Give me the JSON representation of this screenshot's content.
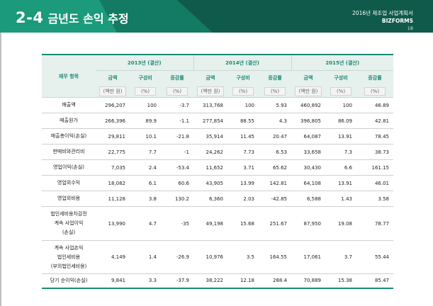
{
  "header": {
    "section_num": "2-4",
    "section_title": "금년도 손익 추정",
    "doc_title": "2016년 제조업 사업계획서",
    "brand": "BIZFORMS",
    "page": "18"
  },
  "table": {
    "item_header": "재무 항목",
    "years": [
      "2013년 (결산)",
      "2014년 (결산)",
      "2015년 (결산)"
    ],
    "sub_headers": [
      "금액",
      "구성비",
      "증감률"
    ],
    "units": [
      "(백만 원)",
      "(%)",
      "(%)"
    ],
    "rows": [
      {
        "label": [
          "매출액"
        ],
        "v": [
          "296,207",
          "100",
          "-3.7",
          "313,768",
          "100",
          "5.93",
          "460,892",
          "100",
          "46.89"
        ]
      },
      {
        "label": [
          "매출원가"
        ],
        "v": [
          "266,396",
          "89.9",
          "-1.1",
          "277,854",
          "88.55",
          "4.3",
          "396,805",
          "86.09",
          "42.81"
        ]
      },
      {
        "label": [
          "매출총이익(손실)"
        ],
        "v": [
          "29,811",
          "10.1",
          "-21.8",
          "35,914",
          "11.45",
          "20.47",
          "64,087",
          "13.91",
          "78.45"
        ]
      },
      {
        "label": [
          "판매비와관리비"
        ],
        "v": [
          "22,775",
          "7.7",
          "-1",
          "24,262",
          "7.73",
          "6.53",
          "33,658",
          "7.3",
          "38.73"
        ]
      },
      {
        "label": [
          "영업이익(손실)"
        ],
        "v": [
          "7,035",
          "2.4",
          "-53.4",
          "11,652",
          "3.71",
          "65.62",
          "30,430",
          "6.6",
          "161.15"
        ]
      },
      {
        "label": [
          "영업외수익"
        ],
        "v": [
          "18,082",
          "6.1",
          "60.6",
          "43,905",
          "13.99",
          "142.81",
          "64,108",
          "13.91",
          "46.01"
        ]
      },
      {
        "label": [
          "영업외비용"
        ],
        "v": [
          "11,128",
          "3.8",
          "130.2",
          "6,360",
          "2.03",
          "-42.85",
          "6,588",
          "1.43",
          "3.58"
        ]
      },
      {
        "label": [
          "법인세비용차감전",
          "계속 사업이익",
          "(손실)"
        ],
        "v": [
          "13,990",
          "4.7",
          "-35",
          "49,198",
          "15.68",
          "251.67",
          "87,950",
          "19.08",
          "78.77"
        ]
      },
      {
        "label": [
          "계속 사업손익",
          "법인세비용",
          "(부의법인세비용)"
        ],
        "v": [
          "4,149",
          "1.4",
          "-26.9",
          "10,976",
          "3.5",
          "164.55",
          "17,061",
          "3.7",
          "55.44"
        ]
      },
      {
        "label": [
          "당기 순이익(손실)"
        ],
        "v": [
          "9,841",
          "3.3",
          "-37.9",
          "38,222",
          "12.18",
          "288.4",
          "70,889",
          "15.38",
          "85.47"
        ]
      }
    ]
  }
}
